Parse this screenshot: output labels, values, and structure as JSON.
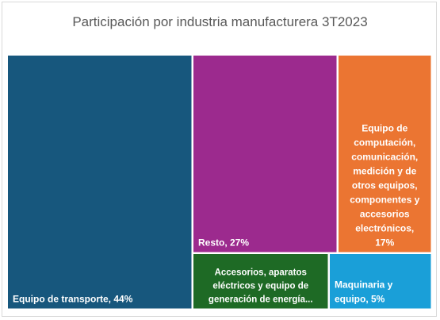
{
  "chart_data": {
    "type": "treemap",
    "title": "Participación por industria manufacturera 3T2023",
    "items": [
      {
        "name": "Equipo de transporte",
        "value": 44,
        "color": "#17577d",
        "label_lines": [
          "Equipo de transporte, 44%"
        ]
      },
      {
        "name": "Resto",
        "value": 27,
        "color": "#9c2a8e",
        "label_lines": [
          "Resto, 27%"
        ]
      },
      {
        "name": "Equipo de computación, comunicación, medición y de otros equipos, componentes y accesorios electrónicos",
        "value": 17,
        "color": "#eb7532",
        "label_lines": [
          "Equipo de",
          "computación,",
          "comunicación,",
          "medición y de",
          "otros equipos,",
          "componentes y",
          "accesorios",
          "electrónicos,",
          "17%"
        ]
      },
      {
        "name": "Accesorios, aparatos eléctricos y equipo de generación de energía...",
        "value": 7,
        "color": "#1e6a25",
        "label_lines": [
          "Accesorios, aparatos",
          "eléctricos y equipo de",
          "generación de energía..."
        ]
      },
      {
        "name": "Maquinaria y equipo",
        "value": 5,
        "color": "#1a9fd8",
        "label_lines": [
          "Maquinaria y",
          "equipo, 5%"
        ]
      }
    ]
  }
}
